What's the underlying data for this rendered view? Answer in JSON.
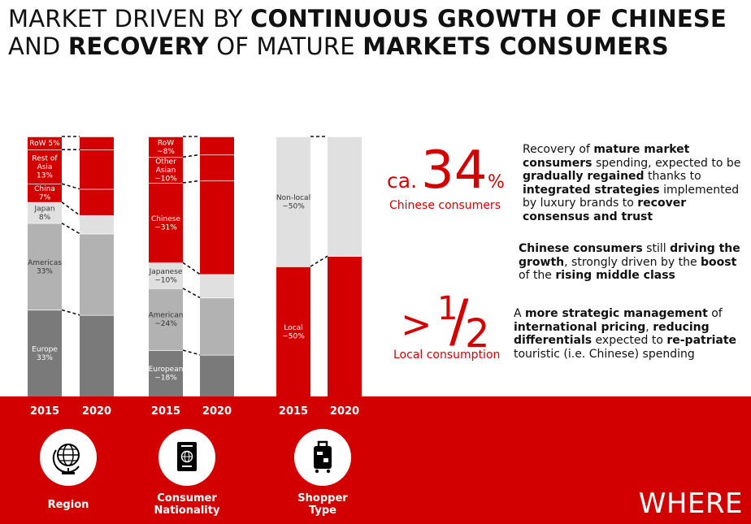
{
  "title": {
    "line1_light": "MARKET DRIVEN BY ",
    "line1_bold": "CONTINUOUS GROWTH OF CHINESE",
    "line2_light1": "AND ",
    "line2_bold1": "RECOVERY",
    "line2_light2": " OF MATURE ",
    "line2_bold2": "MARKETS CONSUMERS"
  },
  "colors": {
    "red": "#d30000",
    "light_grey": "#e0e0e0",
    "mid_grey": "#b2b2b2",
    "dark_grey": "#7a7a7a",
    "white": "#ffffff"
  },
  "chart_data": [
    {
      "type": "bar",
      "stacked": true,
      "categories": [
        "2015",
        "2020"
      ],
      "series": [
        {
          "name": "Europe",
          "values": [
            33,
            31
          ],
          "label_2015": "Europe\n33%",
          "color": "dark_grey"
        },
        {
          "name": "Americas",
          "values": [
            33,
            31
          ],
          "label_2015": "Americas\n33%",
          "color": "mid_grey"
        },
        {
          "name": "Japan",
          "values": [
            8,
            7
          ],
          "label_2015": "Japan\n8%",
          "color": "light_grey"
        },
        {
          "name": "China",
          "values": [
            7,
            10
          ],
          "label_2015": "China\n7%",
          "color": "red"
        },
        {
          "name": "Rest of Asia",
          "values": [
            13,
            15
          ],
          "label_2015": "Rest of\nAsia\n13%",
          "color": "red"
        },
        {
          "name": "RoW",
          "values": [
            5,
            5
          ],
          "label_2015": "RoW 5%",
          "color": "red"
        }
      ],
      "category_label": "Region",
      "icon": "globe-icon"
    },
    {
      "type": "bar",
      "stacked": true,
      "categories": [
        "2015",
        "2020"
      ],
      "series": [
        {
          "name": "European",
          "values": [
            18,
            16
          ],
          "label_2015": "European\n~18%",
          "color": "dark_grey"
        },
        {
          "name": "American",
          "values": [
            24,
            22
          ],
          "label_2015": "American\n~24%",
          "color": "mid_grey"
        },
        {
          "name": "Japanese",
          "values": [
            10,
            9
          ],
          "label_2015": "Japanese\n~10%",
          "color": "light_grey"
        },
        {
          "name": "Chinese",
          "values": [
            31,
            36
          ],
          "label_2015": "Chinese\n~31%",
          "color": "red"
        },
        {
          "name": "Other Asian",
          "values": [
            10,
            10
          ],
          "label_2015": "Other\nAsian\n~10%",
          "color": "red"
        },
        {
          "name": "RoW",
          "values": [
            8,
            7
          ],
          "label_2015": "RoW\n~8%",
          "color": "red"
        }
      ],
      "category_label": "Consumer\nNationality",
      "icon": "passport-icon"
    },
    {
      "type": "bar",
      "stacked": true,
      "categories": [
        "2015",
        "2020"
      ],
      "series": [
        {
          "name": "Local",
          "values": [
            50,
            54
          ],
          "label_2015": "Local\n~50%",
          "color": "red"
        },
        {
          "name": "Non-local",
          "values": [
            50,
            46
          ],
          "label_2015": "Non-local\n~50%",
          "color": "light_grey"
        }
      ],
      "category_label": "Shopper\nType",
      "icon": "luggage-icon"
    }
  ],
  "callouts": {
    "chinese": {
      "prefix": "ca.",
      "number": "34",
      "suffix": "%",
      "caption": "Chinese consumers"
    },
    "local": {
      "prefix": ">",
      "numerator": "1",
      "slash": "/",
      "denominator": "2",
      "caption": "Local consumption"
    }
  },
  "blurbs": {
    "b1": [
      {
        "t": "Recovery of ",
        "b": false
      },
      {
        "t": "mature market consumers",
        "b": true
      },
      {
        "t": " spending, expected to be ",
        "b": false
      },
      {
        "t": "gradually regained",
        "b": true
      },
      {
        "t": " thanks to ",
        "b": false
      },
      {
        "t": "integrated strategies",
        "b": true
      },
      {
        "t": " implemented by luxury brands to ",
        "b": false
      },
      {
        "t": "recover consensus and trust",
        "b": true
      }
    ],
    "b2": [
      {
        "t": "Chinese consumers",
        "b": true
      },
      {
        "t": " still ",
        "b": false
      },
      {
        "t": "driving the growth",
        "b": true
      },
      {
        "t": ", strongly driven by the ",
        "b": false
      },
      {
        "t": "boost",
        "b": true
      },
      {
        "t": " of the ",
        "b": false
      },
      {
        "t": "rising middle class",
        "b": true
      }
    ],
    "b3": [
      {
        "t": "A ",
        "b": false
      },
      {
        "t": "more strategic management",
        "b": true
      },
      {
        "t": " of ",
        "b": false
      },
      {
        "t": "international pricing",
        "b": true
      },
      {
        "t": ", ",
        "b": false
      },
      {
        "t": "reducing differentials",
        "b": true
      },
      {
        "t": " expected to ",
        "b": false
      },
      {
        "t": "re-patriate",
        "b": true
      },
      {
        "t": " touristic (i.e. Chinese) spending",
        "b": false
      }
    ]
  },
  "footer": {
    "label": "WHERE"
  }
}
